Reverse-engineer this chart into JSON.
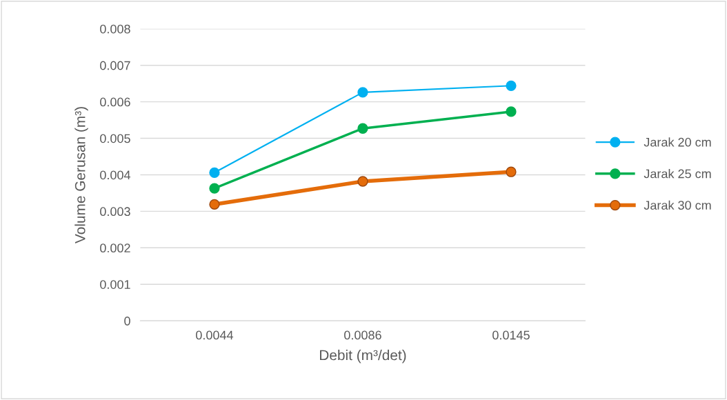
{
  "chart_data": {
    "type": "line",
    "xlabel": "Debit (m³/det)",
    "ylabel": "Volume Gerusan (m³)",
    "categories": [
      "0.0044",
      "0.0086",
      "0.0145"
    ],
    "series": [
      {
        "name": "Jarak 20 cm",
        "color": "#00b0f0",
        "values": [
          0.00406,
          0.00626,
          0.00644
        ]
      },
      {
        "name": "Jarak 25 cm",
        "color": "#00b050",
        "values": [
          0.00363,
          0.00527,
          0.00573
        ]
      },
      {
        "name": "Jarak 30 cm",
        "color": "#e46c0a",
        "values": [
          0.00319,
          0.00382,
          0.00408
        ]
      }
    ],
    "ylim": [
      0,
      0.008
    ],
    "yticks": [
      0,
      0.001,
      0.002,
      0.003,
      0.004,
      0.005,
      0.006,
      0.007,
      0.008
    ],
    "grid": "y",
    "legend": "right",
    "marker": "circle",
    "line_style": "solid"
  }
}
